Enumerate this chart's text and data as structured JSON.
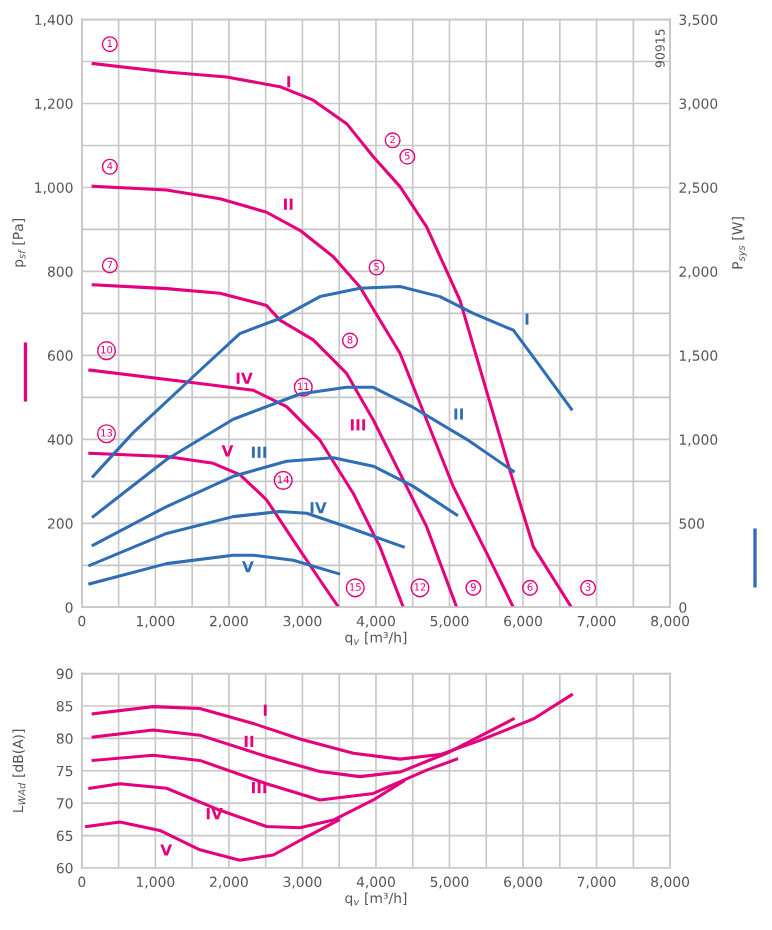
{
  "chart_data": [
    {
      "type": "line",
      "xlabel": "q$_{v}$ [m³/h]",
      "ylabel": "p$_{sf}$ [Pa]",
      "y2label": "P$_{sys}$ [W]",
      "grid": true,
      "line_style": "solid",
      "xlim": [
        0,
        8000
      ],
      "ylim": [
        0,
        1400
      ],
      "y2lim": [
        0,
        3500
      ],
      "xticks": [
        0,
        {
          "value": 500,
          "label": null
        },
        {
          "value": 1000,
          "label": "1,000"
        },
        {
          "value": 1500,
          "label": null
        },
        {
          "value": 2000,
          "label": "2,000"
        },
        {
          "value": 2500,
          "label": null
        },
        {
          "value": 3000,
          "label": "3,000"
        },
        {
          "value": 3500,
          "label": null
        },
        {
          "value": 4000,
          "label": "4,000"
        },
        {
          "value": 4500,
          "label": null
        },
        {
          "value": 5000,
          "label": "5,000"
        },
        {
          "value": 5500,
          "label": null
        },
        {
          "value": 6000,
          "label": "6,000"
        },
        {
          "value": 6500,
          "label": null
        },
        {
          "value": 7000,
          "label": "7,000"
        },
        {
          "value": 7500,
          "label": null
        },
        {
          "value": 8000,
          "label": "8,000"
        }
      ],
      "yticks": [
        0,
        {
          "value": 100,
          "label": null
        },
        200,
        {
          "value": 300,
          "label": null
        },
        400,
        {
          "value": 500,
          "label": null
        },
        600,
        {
          "value": 700,
          "label": null
        },
        800,
        {
          "value": 900,
          "label": null
        },
        {
          "value": 1000,
          "label": "1,000"
        },
        {
          "value": 1100,
          "label": null
        },
        {
          "value": 1200,
          "label": "1,200"
        },
        {
          "value": 1300,
          "label": null
        },
        {
          "value": 1400,
          "label": "1,400"
        }
      ],
      "y2ticks": [
        0,
        500,
        {
          "value": 1000,
          "label": "1,000"
        },
        {
          "value": 1500,
          "label": "1,500"
        },
        {
          "value": 2000,
          "label": "2,000"
        },
        {
          "value": 2500,
          "label": "2,500"
        },
        {
          "value": 3000,
          "label": "3,000"
        },
        {
          "value": 3500,
          "label": "3,500"
        }
      ],
      "series": [
        {
          "name": "I",
          "color": "#e5007d",
          "x": [
            154,
            1152,
            1968,
            2694,
            3147,
            3601,
            3964,
            4327,
            4689,
            5143,
            5778,
            6141,
            6658
          ],
          "values": [
            1295,
            1275,
            1263,
            1240,
            1208,
            1152,
            1073,
            1002,
            906,
            731,
            351,
            144,
            0
          ]
        },
        {
          "name": "II",
          "color": "#e5007d",
          "x": [
            154,
            1152,
            1878,
            2512,
            2966,
            3420,
            3782,
            4327,
            4689,
            5052,
            5506,
            5868
          ],
          "values": [
            1003,
            994,
            973,
            941,
            898,
            835,
            763,
            605,
            446,
            287,
            129,
            0
          ]
        },
        {
          "name": "III",
          "color": "#e5007d",
          "x": [
            154,
            1152,
            1878,
            2512,
            2694,
            3147,
            3601,
            3964,
            4327,
            4689,
            5098
          ],
          "values": [
            768,
            759,
            748,
            719,
            684,
            637,
            557,
            446,
            319,
            192,
            0
          ]
        },
        {
          "name": "IV",
          "color": "#e5007d",
          "x": [
            109,
            1605,
            2331,
            2785,
            3238,
            3692,
            4054,
            4372
          ],
          "values": [
            565,
            533,
            517,
            478,
            398,
            271,
            144,
            0
          ]
        },
        {
          "name": "V",
          "color": "#e5007d",
          "x": [
            109,
            1152,
            1787,
            2149,
            2512,
            2875,
            3238,
            3492
          ],
          "values": [
            367,
            359,
            343,
            316,
            256,
            160,
            65,
            0
          ]
        },
        {
          "name": "I",
          "color": "#2f6eb5",
          "axis": "y2",
          "x": [
            154,
            699,
            1605,
            2149,
            2694,
            3238,
            3782,
            4327,
            4871,
            5324,
            5868,
            6141,
            6658
          ],
          "values": [
            780,
            1040,
            1410,
            1630,
            1720,
            1850,
            1900,
            1910,
            1850,
            1750,
            1650,
            1490,
            1180
          ]
        },
        {
          "name": "II",
          "color": "#2f6eb5",
          "axis": "y2",
          "x": [
            154,
            1152,
            2059,
            2966,
            3601,
            3964,
            4508,
            5234,
            5868
          ],
          "values": [
            540,
            880,
            1120,
            1270,
            1310,
            1310,
            1190,
            1000,
            810
          ]
        },
        {
          "name": "III",
          "color": "#2f6eb5",
          "axis": "y2",
          "x": [
            154,
            1152,
            2059,
            2785,
            3420,
            3964,
            4508,
            5098
          ],
          "values": [
            370,
            600,
            780,
            870,
            890,
            840,
            720,
            550
          ]
        },
        {
          "name": "IV",
          "color": "#2f6eb5",
          "axis": "y2",
          "x": [
            109,
            1152,
            2059,
            2694,
            3057,
            3601,
            4372
          ],
          "values": [
            250,
            440,
            540,
            570,
            560,
            480,
            360
          ]
        },
        {
          "name": "V",
          "color": "#2f6eb5",
          "axis": "y2",
          "x": [
            109,
            1152,
            2059,
            2331,
            2875,
            3492
          ],
          "values": [
            140,
            260,
            310,
            310,
            280,
            200
          ]
        }
      ],
      "annotations": [
        "90915",
        {
          "text": "1",
          "x": 154,
          "y": 1295
        },
        {
          "text": "2",
          "x": 4000,
          "y": 1066
        },
        {
          "text": "5",
          "x": 4200,
          "y": 1027
        },
        {
          "text": "4",
          "x": 154,
          "y": 1003
        },
        {
          "text": "5",
          "x": 3782,
          "y": 763
        },
        {
          "text": "7",
          "x": 154,
          "y": 768
        },
        {
          "text": "10",
          "x": 109,
          "y": 565
        },
        {
          "text": "8",
          "x": 3420,
          "y": 589
        },
        {
          "text": "13",
          "x": 109,
          "y": 367
        },
        {
          "text": "11",
          "x": 2785,
          "y": 478
        },
        {
          "text": "14",
          "x": 2512,
          "y": 256
        },
        {
          "text": "15",
          "x": 3492,
          "y": 0
        },
        {
          "text": "12",
          "x": 4372,
          "y": 0
        },
        {
          "text": "9",
          "x": 5098,
          "y": 0
        },
        {
          "text": "6",
          "x": 5868,
          "y": 0
        },
        {
          "text": "3",
          "x": 6658,
          "y": 0
        }
      ]
    },
    {
      "type": "line",
      "xlabel": "q$_{v}$ [m³/h]",
      "ylabel": "L$_{WAd}$ [dB(A)]",
      "grid": true,
      "line_style": "solid",
      "xlim": [
        0,
        8000
      ],
      "ylim": [
        60,
        90
      ],
      "xticks": [
        0,
        {
          "value": 500,
          "label": null
        },
        {
          "value": 1000,
          "label": "1,000"
        },
        {
          "value": 1500,
          "label": null
        },
        {
          "value": 2000,
          "label": "2,000"
        },
        {
          "value": 2500,
          "label": null
        },
        {
          "value": 3000,
          "label": "3,000"
        },
        {
          "value": 3500,
          "label": null
        },
        {
          "value": 4000,
          "label": "4,000"
        },
        {
          "value": 4500,
          "label": null
        },
        {
          "value": 5000,
          "label": "5,000"
        },
        {
          "value": 5500,
          "label": null
        },
        {
          "value": 6000,
          "label": "6,000"
        },
        {
          "value": 6500,
          "label": null
        },
        {
          "value": 7000,
          "label": "7,000"
        },
        {
          "value": 7500,
          "label": null
        },
        {
          "value": 8000,
          "label": "8,000"
        }
      ],
      "yticks": [
        60,
        65,
        70,
        75,
        80,
        85,
        90
      ],
      "series": [
        {
          "name": "I",
          "color": "#e5007d",
          "x": [
            154,
            970,
            1605,
            2331,
            2966,
            3692,
            4327,
            4871,
            5415,
            6141,
            6658
          ],
          "values": [
            83.8,
            84.9,
            84.6,
            82.3,
            79.9,
            77.7,
            76.8,
            77.5,
            79.7,
            83.0,
            86.7
          ]
        },
        {
          "name": "II",
          "color": "#e5007d",
          "x": [
            154,
            970,
            1605,
            2512,
            3238,
            3782,
            4327,
            4962,
            5868
          ],
          "values": [
            80.2,
            81.3,
            80.5,
            77.2,
            74.9,
            74.1,
            74.8,
            77.7,
            83.0
          ]
        },
        {
          "name": "III",
          "color": "#e5007d",
          "x": [
            154,
            970,
            1605,
            2512,
            3238,
            3964,
            4689,
            5098
          ],
          "values": [
            76.6,
            77.4,
            76.6,
            73.0,
            70.5,
            71.5,
            75.1,
            76.8
          ]
        },
        {
          "name": "IV",
          "color": "#e5007d",
          "x": [
            109,
            517,
            1152,
            1878,
            2512,
            2966,
            3420,
            3964,
            4372
          ],
          "values": [
            72.3,
            73.0,
            72.3,
            68.9,
            66.4,
            66.2,
            67.4,
            70.5,
            73.4
          ]
        },
        {
          "name": "V",
          "color": "#e5007d",
          "x": [
            64,
            517,
            1061,
            1605,
            2149,
            2603,
            3057,
            3492
          ],
          "values": [
            66.4,
            67.1,
            65.8,
            62.8,
            61.2,
            62.0,
            64.8,
            67.4
          ]
        }
      ]
    }
  ]
}
